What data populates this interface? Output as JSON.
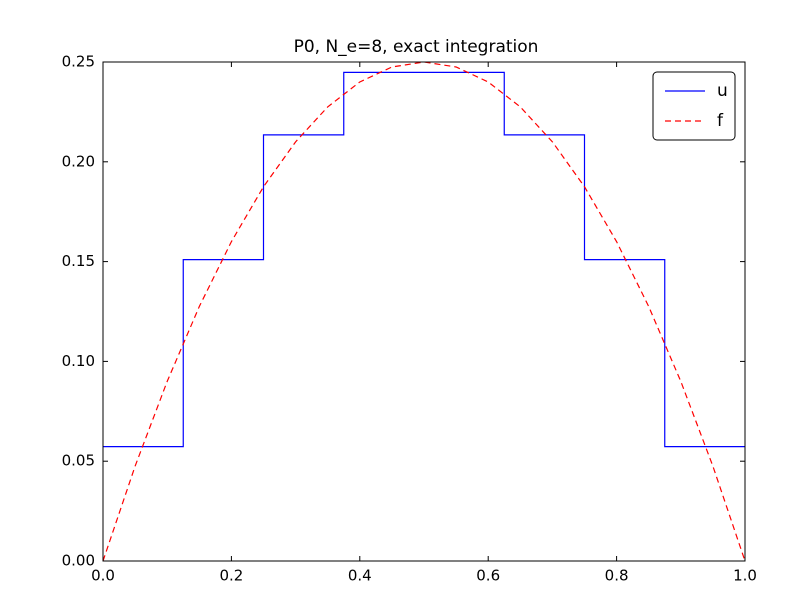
{
  "chart_data": {
    "type": "line",
    "title": "P0, N_e=8, exact integration",
    "series": [
      {
        "name": "u",
        "color": "#0000ff",
        "dash": "solid",
        "x": [
          0,
          0.125,
          0.125,
          0.25,
          0.25,
          0.375,
          0.375,
          0.5,
          0.5,
          0.625,
          0.625,
          0.75,
          0.75,
          0.875,
          0.875,
          1
        ],
        "values": [
          0.0573,
          0.0573,
          0.151,
          0.151,
          0.2135,
          0.2135,
          0.2448,
          0.2448,
          0.2448,
          0.2448,
          0.2135,
          0.2135,
          0.151,
          0.151,
          0.0573,
          0.0573
        ]
      },
      {
        "name": "f",
        "color": "#ff0000",
        "dash": "dashed",
        "x": [
          0,
          0.05,
          0.1,
          0.15,
          0.2,
          0.25,
          0.3,
          0.35,
          0.4,
          0.45,
          0.5,
          0.55,
          0.6,
          0.65,
          0.7,
          0.75,
          0.8,
          0.85,
          0.9,
          0.95,
          1
        ],
        "values": [
          0,
          0.0475,
          0.09,
          0.1275,
          0.16,
          0.1875,
          0.21,
          0.2275,
          0.24,
          0.2475,
          0.25,
          0.2475,
          0.24,
          0.2275,
          0.21,
          0.1875,
          0.16,
          0.1275,
          0.09,
          0.0475,
          0
        ]
      }
    ],
    "xlim": [
      0,
      1
    ],
    "ylim": [
      0,
      0.25
    ],
    "xticks": [
      {
        "value": 0,
        "label": "0.0"
      },
      0.2,
      0.4,
      0.6,
      0.8,
      {
        "value": 1,
        "label": "1.0"
      }
    ],
    "yticks": [
      {
        "value": 0,
        "label": "0.00"
      },
      0.05,
      {
        "value": 0.1,
        "label": "0.10"
      },
      0.15,
      {
        "value": 0.2,
        "label": "0.20"
      },
      0.25
    ],
    "grid": false,
    "legend": "upper right"
  }
}
